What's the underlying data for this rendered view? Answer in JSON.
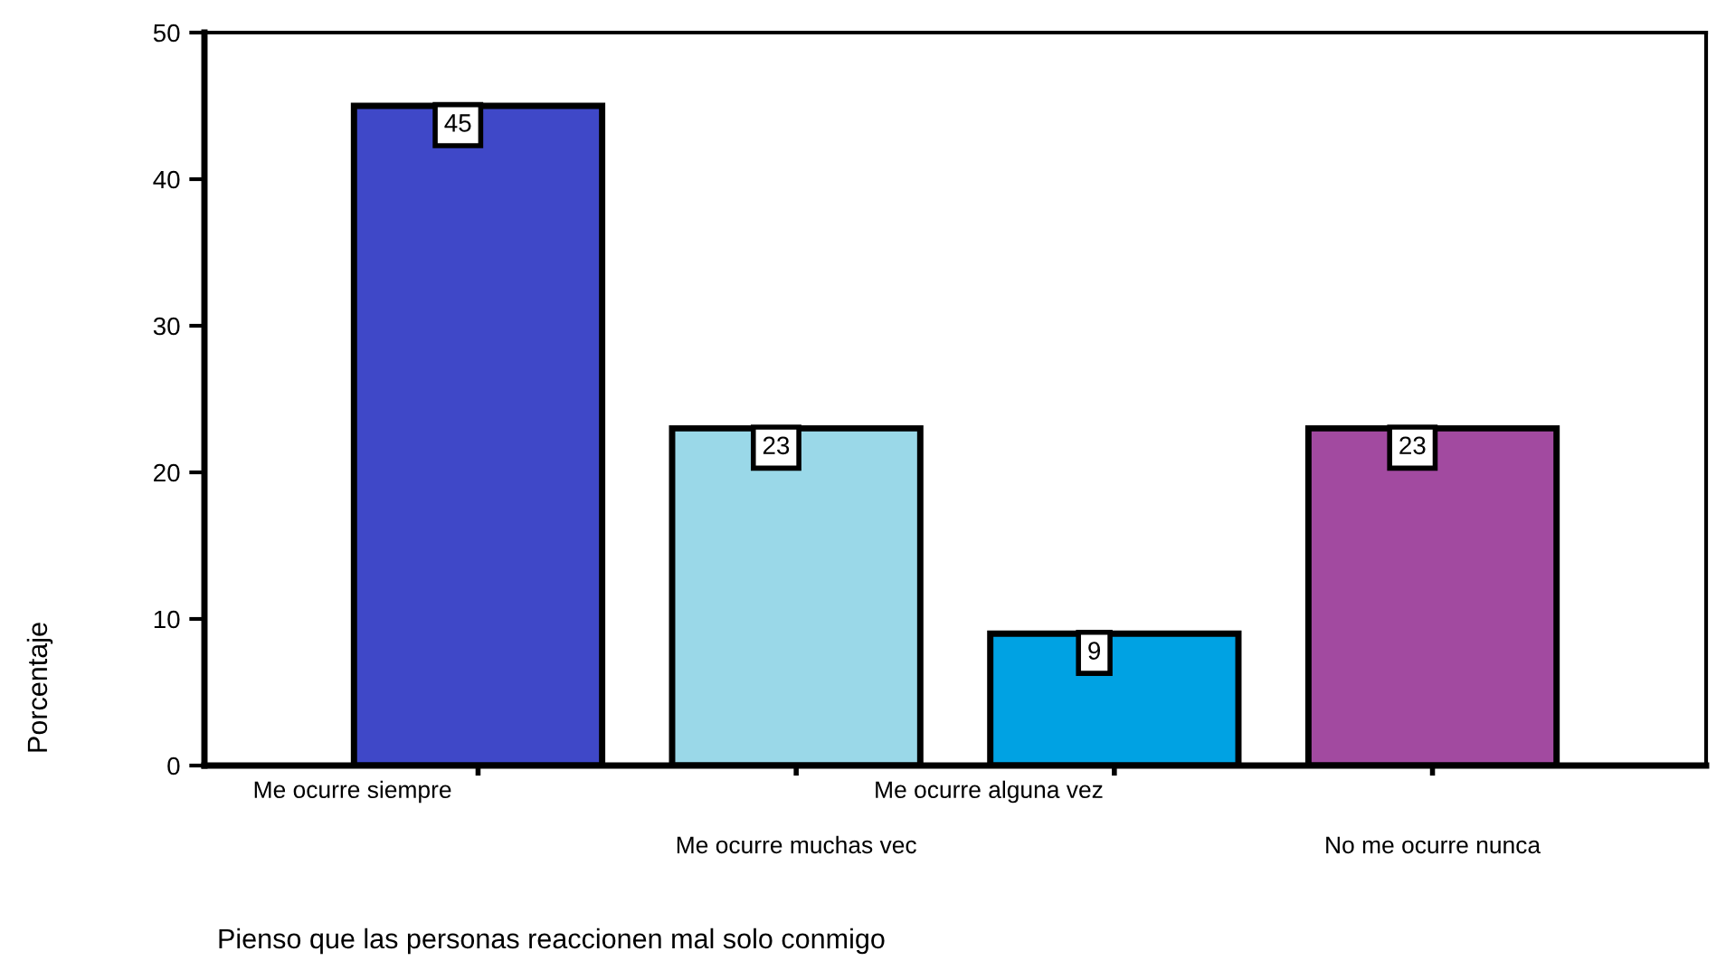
{
  "chart_data": {
    "type": "bar",
    "xlabel": "Pienso que las personas reaccionen mal solo conmigo",
    "ylabel": "Porcentaje",
    "categories": [
      "Me ocurre siempre",
      "Me ocurre muchas vec",
      "Me ocurre alguna vez",
      "No me ocurre nunca"
    ],
    "values": [
      45,
      23,
      9,
      23
    ],
    "colors": [
      "#3f48c8",
      "#9ad8e8",
      "#00a2e3",
      "#a24aa0"
    ],
    "ylim": [
      0,
      50
    ],
    "yticks": [
      0,
      10,
      20,
      30,
      40,
      50
    ],
    "data_labels": true,
    "grid": false
  }
}
